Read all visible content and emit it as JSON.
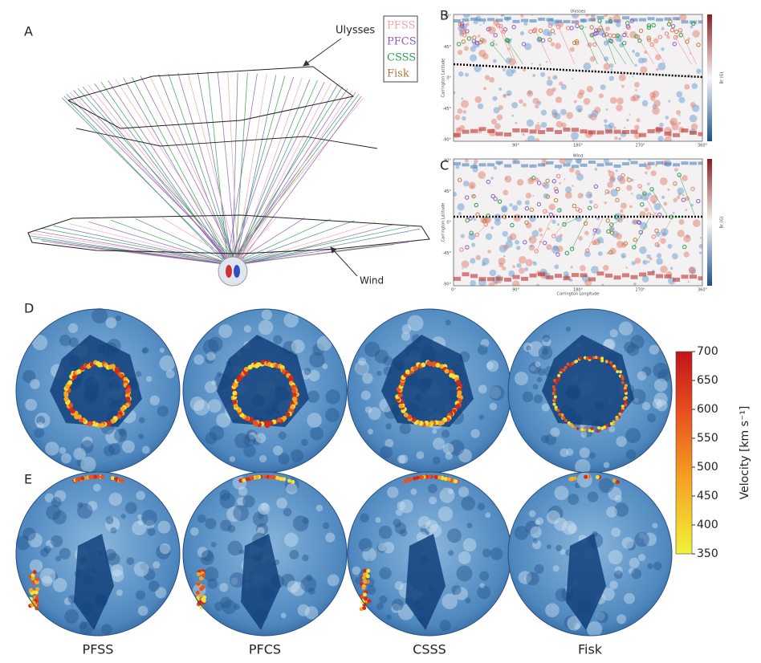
{
  "panel_labels": [
    "A",
    "B",
    "C",
    "D",
    "E"
  ],
  "panel_a": {
    "annotations": [
      "Ulysses",
      "Wind"
    ],
    "legend": [
      {
        "name": "PFSS",
        "color": "#f4a0a8"
      },
      {
        "name": "PFCS",
        "color": "#8a5cc0"
      },
      {
        "name": "CSSS",
        "color": "#2e9e4e"
      },
      {
        "name": "Fisk",
        "color": "#a8743a"
      }
    ]
  },
  "panel_b": {
    "title": "Ulysses",
    "y_label": "Carrington Latitude",
    "x_ticks": [
      "90°",
      "180°",
      "270°",
      "360°"
    ],
    "y_ticks": [
      "90°",
      "45°",
      "0°",
      "-45°",
      "-90°"
    ],
    "colorbar_label": "Br (G)"
  },
  "panel_c": {
    "title": "Wind",
    "y_label": "Carrington Latitude",
    "x_label": "Carrington Longitude",
    "x_ticks": [
      "0°",
      "90°",
      "180°",
      "270°",
      "360°"
    ],
    "y_ticks": [
      "90°",
      "45°",
      "0°",
      "-45°",
      "-90°"
    ],
    "colorbar_label": "Br (G)"
  },
  "models": [
    "PFSS",
    "PFCS",
    "CSSS",
    "Fisk"
  ],
  "colorbar": {
    "label": "Velocity [km s⁻¹]",
    "lim": [
      350,
      700
    ],
    "ticks": [
      350,
      400,
      450,
      500,
      550,
      600,
      650,
      700
    ]
  }
}
